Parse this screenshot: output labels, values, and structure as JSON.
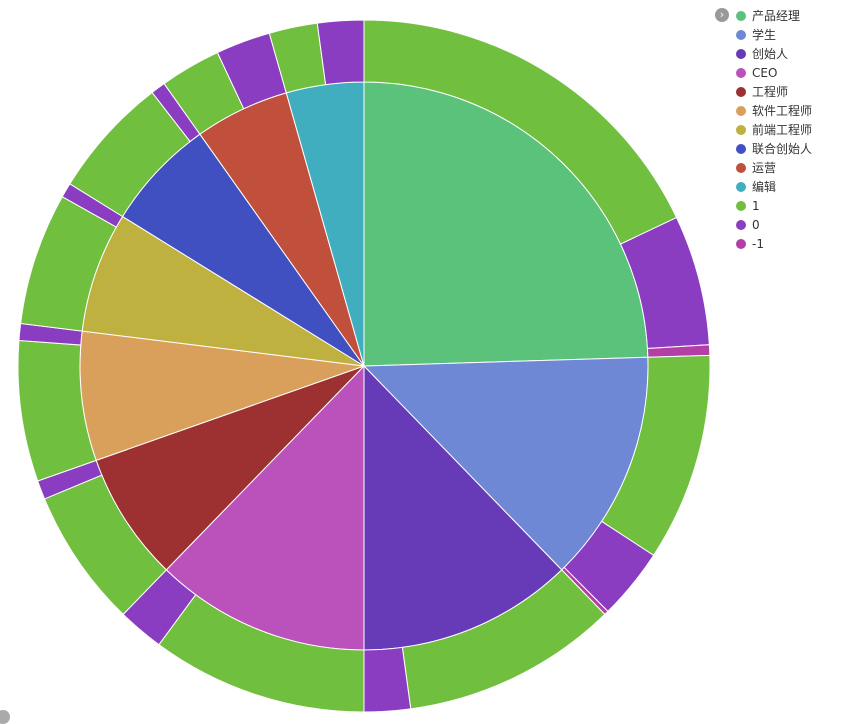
{
  "chart_data": {
    "type": "pie",
    "subtype": "nested-donut",
    "legend_position": "top-right",
    "legend": [
      {
        "label": "产品经理",
        "color": "#5bc27b"
      },
      {
        "label": "学生",
        "color": "#6f88d6"
      },
      {
        "label": "创始人",
        "color": "#673bb7"
      },
      {
        "label": "CEO",
        "color": "#bb52bb"
      },
      {
        "label": "工程师",
        "color": "#9d3131"
      },
      {
        "label": "软件工程师",
        "color": "#d9a05b"
      },
      {
        "label": "前端工程师",
        "color": "#bfb13f"
      },
      {
        "label": "联合创始人",
        "color": "#4150c1"
      },
      {
        "label": "运营",
        "color": "#c0503c"
      },
      {
        "label": "编辑",
        "color": "#41aec0"
      },
      {
        "label": "1",
        "color": "#71bf3f"
      },
      {
        "label": "0",
        "color": "#8b3dc1"
      },
      {
        "label": "-1",
        "color": "#b33ea6"
      }
    ],
    "inner_series": {
      "name": "",
      "data": [
        {
          "name": "产品经理",
          "value": 25
        },
        {
          "name": "学生",
          "value": 13.5
        },
        {
          "name": "创始人",
          "value": 12.5
        },
        {
          "name": "CEO",
          "value": 12.5
        },
        {
          "name": "工程师",
          "value": 7.5
        },
        {
          "name": "软件工程师",
          "value": 7.5
        },
        {
          "name": "前端工程师",
          "value": 7
        },
        {
          "name": "联合创始人",
          "value": 6.5
        },
        {
          "name": "运营",
          "value": 5.5
        },
        {
          "name": "编辑",
          "value": 4.5
        }
      ]
    },
    "outer_series": {
      "name": "",
      "data": [
        {
          "name": "1",
          "value": 18.3,
          "parent": "产品经理"
        },
        {
          "name": "0",
          "value": 6.2,
          "parent": "产品经理"
        },
        {
          "name": "-1",
          "value": 0.5,
          "parent": "产品经理"
        },
        {
          "name": "1",
          "value": 9.9,
          "parent": "学生"
        },
        {
          "name": "0",
          "value": 3.4,
          "parent": "学生"
        },
        {
          "name": "-1",
          "value": 0.2,
          "parent": "学生"
        },
        {
          "name": "1",
          "value": 10.3,
          "parent": "创始人"
        },
        {
          "name": "0",
          "value": 2.2,
          "parent": "创始人"
        },
        {
          "name": "1",
          "value": 10.3,
          "parent": "CEO"
        },
        {
          "name": "0",
          "value": 2.2,
          "parent": "CEO"
        },
        {
          "name": "1",
          "value": 6.6,
          "parent": "工程师"
        },
        {
          "name": "0",
          "value": 0.9,
          "parent": "工程师"
        },
        {
          "name": "1",
          "value": 6.7,
          "parent": "软件工程师"
        },
        {
          "name": "0",
          "value": 0.8,
          "parent": "软件工程师"
        },
        {
          "name": "1",
          "value": 6.3,
          "parent": "前端工程师"
        },
        {
          "name": "0",
          "value": 0.7,
          "parent": "前端工程师"
        },
        {
          "name": "1",
          "value": 5.8,
          "parent": "联合创始人"
        },
        {
          "name": "0",
          "value": 0.7,
          "parent": "联合创始人"
        },
        {
          "name": "1",
          "value": 2.9,
          "parent": "运营"
        },
        {
          "name": "0",
          "value": 2.6,
          "parent": "运营"
        },
        {
          "name": "1",
          "value": 2.3,
          "parent": "编辑"
        },
        {
          "name": "0",
          "value": 2.2,
          "parent": "编辑"
        }
      ]
    }
  }
}
